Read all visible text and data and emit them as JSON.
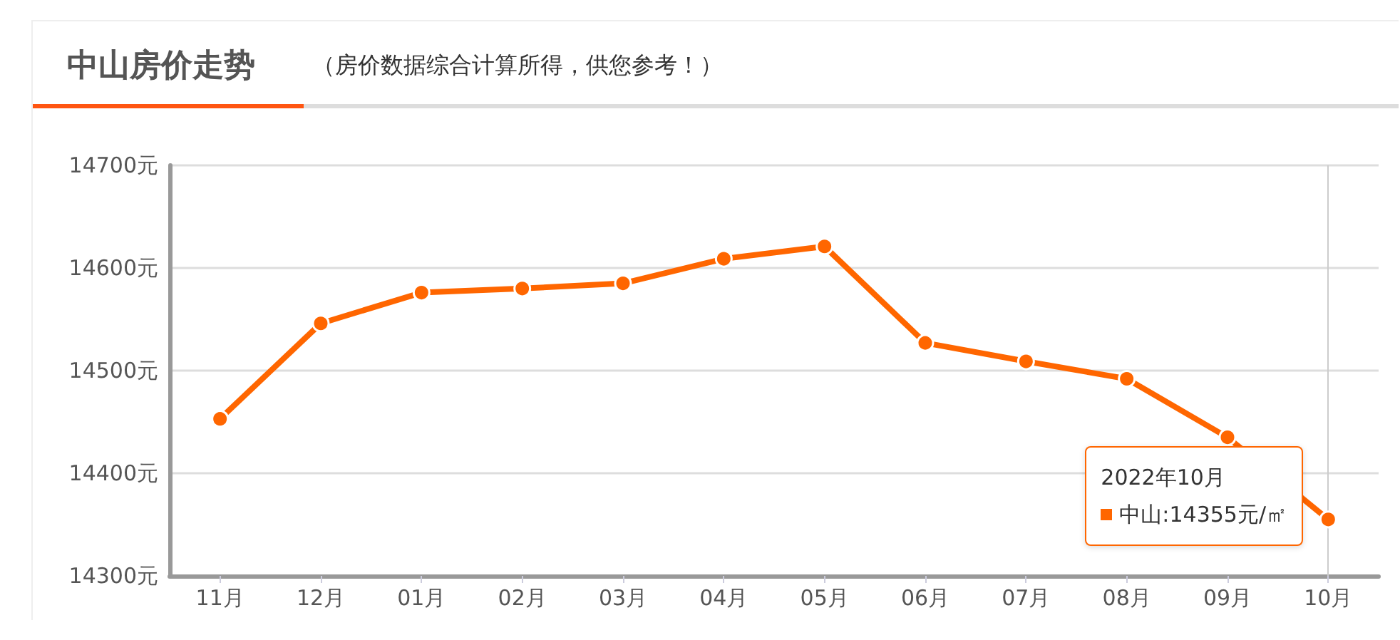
{
  "chart_data": {
    "type": "line",
    "title": "中山房价走势",
    "subtitle": "（房价数据综合计算所得，供您参考！）",
    "categories": [
      "11月",
      "12月",
      "01月",
      "02月",
      "03月",
      "04月",
      "05月",
      "06月",
      "07月",
      "08月",
      "09月",
      "10月"
    ],
    "series": [
      {
        "name": "中山",
        "color": "#ff6600",
        "values": [
          14453,
          14546,
          14576,
          14580,
          14585,
          14609,
          14621,
          14527,
          14509,
          14492,
          14435,
          14355
        ]
      }
    ],
    "ylim": [
      14300,
      14700
    ],
    "yticks": [
      {
        "value": 14300,
        "label": "14300元"
      },
      {
        "value": 14400,
        "label": "14400元"
      },
      {
        "value": 14500,
        "label": "14500元"
      },
      {
        "value": 14600,
        "label": "14600元"
      },
      {
        "value": 14700,
        "label": "14700元"
      }
    ],
    "grid": "y",
    "legend": "bottom right",
    "marker": "circle",
    "line_style": "solid",
    "ref_lines": [
      {
        "axis": "x",
        "value": "10月",
        "color": "#cccccc"
      }
    ],
    "annotations": [
      "2022年10月",
      ":14355元/㎡"
    ]
  }
}
